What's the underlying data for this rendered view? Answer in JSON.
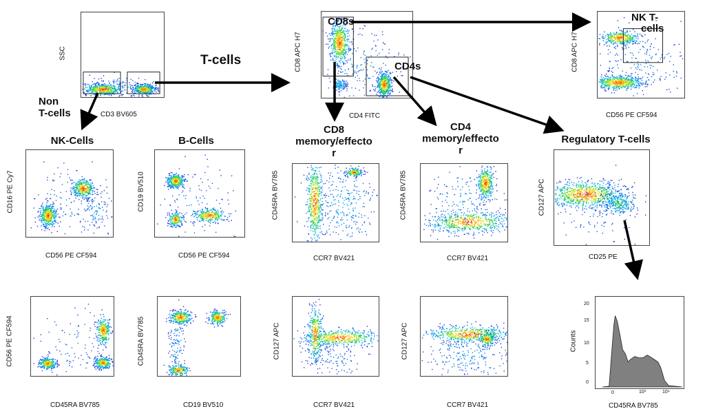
{
  "labels": {
    "tcells": "T-cells",
    "non_tcells_1": "Non",
    "non_tcells_2": "T-cells",
    "cd8s": "CD8s",
    "cd4s": "CD4s",
    "nkt_1": "NK T-",
    "nkt_2": "cells",
    "nk_cells": "NK-Cells",
    "b_cells": "B-Cells",
    "cd8_mem_1": "CD8",
    "cd8_mem_2": "memory/effecto",
    "cd8_mem_3": "r",
    "cd4_mem_1": "CD4",
    "cd4_mem_2": "memory/effecto",
    "cd4_mem_3": "r",
    "treg": "Regulatory T-cells"
  },
  "plots": [
    {
      "id": "p1",
      "x": "CD3 BV605",
      "y": "SSC"
    },
    {
      "id": "p2",
      "x": "CD4 FITC",
      "y": "CD8 APC H7"
    },
    {
      "id": "p3",
      "x": "CD56 PE CF594",
      "y": "CD8 APC H7"
    },
    {
      "id": "p4",
      "x": "CD56 PE CF594",
      "y": "CD16 PE Cy7"
    },
    {
      "id": "p5",
      "x": "CD56 PE CF594",
      "y": "CD19 BV510"
    },
    {
      "id": "p6",
      "x": "CCR7 BV421",
      "y": "CD45RA BV785"
    },
    {
      "id": "p7",
      "x": "CCR7 BV421",
      "y": "CD45RA BV785"
    },
    {
      "id": "p8",
      "x": "CD25 PE",
      "y": "CD127 APC"
    },
    {
      "id": "p9",
      "x": "CD45RA BV785",
      "y": "CD56 PE CF594"
    },
    {
      "id": "p10",
      "x": "CD19 BV510",
      "y": "CD45RA BV785"
    },
    {
      "id": "p11",
      "x": "CCR7 BV421",
      "y": "CD127 APC"
    },
    {
      "id": "p12",
      "x": "CCR7 BV421",
      "y": "CD127 APC"
    },
    {
      "id": "p13",
      "x": "CD45RA BV785",
      "y": "Counts"
    }
  ],
  "histogram": {
    "y_ticks": [
      "20",
      "15",
      "10",
      "5",
      "0"
    ],
    "x_ticks": [
      "0",
      "10³",
      "10⁴"
    ]
  },
  "colors": {
    "arrow": "#000000",
    "hist_fill": "#808080",
    "frame": "#444444"
  }
}
